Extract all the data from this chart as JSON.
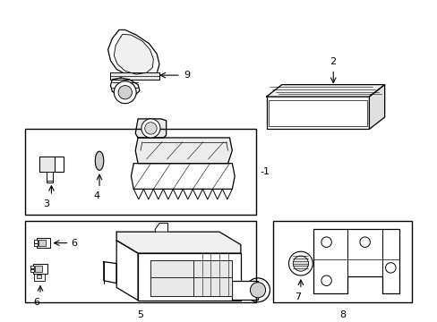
{
  "background_color": "#ffffff",
  "line_color": "#000000",
  "figsize": [
    4.89,
    3.6
  ],
  "dpi": 100,
  "lw_main": 0.9,
  "lw_thin": 0.6,
  "lw_label": 0.8
}
